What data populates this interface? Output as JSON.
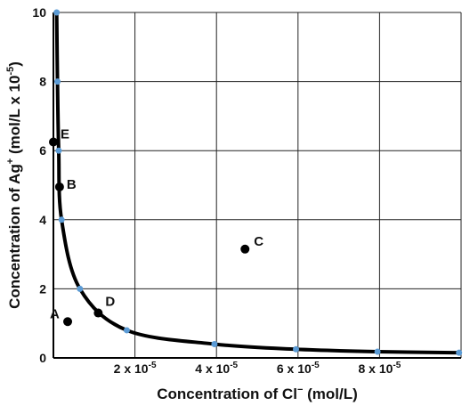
{
  "chart_data": {
    "type": "scatter",
    "title": "",
    "xlabel": "Concentration of Cl",
    "xlabel_sup": "−",
    "xlabel_unit": " (mol/L)",
    "ylabel": "Concentration of Ag",
    "ylabel_sup": "+",
    "ylabel_unit": " (mol/L x 10",
    "ylabel_unit_sup": "-5",
    "ylabel_close": ")",
    "xlim": [
      0,
      10
    ],
    "ylim": [
      0,
      10
    ],
    "grid": true,
    "x_ticks": [
      {
        "x": 2,
        "base": "2 x 10",
        "exp": "-5"
      },
      {
        "x": 4,
        "base": "4 x 10",
        "exp": "-5"
      },
      {
        "x": 6,
        "base": "6 x 10",
        "exp": "-5"
      },
      {
        "x": 8,
        "base": "8 x 10",
        "exp": "-5"
      }
    ],
    "y_ticks": [
      {
        "y": 0,
        "label": "0"
      },
      {
        "y": 2,
        "label": "2"
      },
      {
        "y": 4,
        "label": "4"
      },
      {
        "y": 6,
        "label": "6"
      },
      {
        "y": 8,
        "label": "8"
      },
      {
        "y": 10,
        "label": "10"
      }
    ],
    "curve": {
      "color": "#000000",
      "marker_color": "#5b9bd5",
      "points": [
        {
          "x": 0.08,
          "y": 10
        },
        {
          "x": 0.1,
          "y": 8
        },
        {
          "x": 0.13,
          "y": 6
        },
        {
          "x": 0.2,
          "y": 4
        },
        {
          "x": 0.65,
          "y": 2
        },
        {
          "x": 1.8,
          "y": 0.8
        },
        {
          "x": 3.95,
          "y": 0.4
        },
        {
          "x": 5.95,
          "y": 0.25
        },
        {
          "x": 7.95,
          "y": 0.18
        },
        {
          "x": 9.95,
          "y": 0.15
        }
      ]
    },
    "points": [
      {
        "name": "A",
        "x": 0.35,
        "y": 1.05
      },
      {
        "name": "B",
        "x": 0.15,
        "y": 4.95
      },
      {
        "name": "C",
        "x": 4.7,
        "y": 3.15
      },
      {
        "name": "D",
        "x": 1.1,
        "y": 1.3
      },
      {
        "name": "E",
        "x": 0.0,
        "y": 6.25
      }
    ]
  }
}
